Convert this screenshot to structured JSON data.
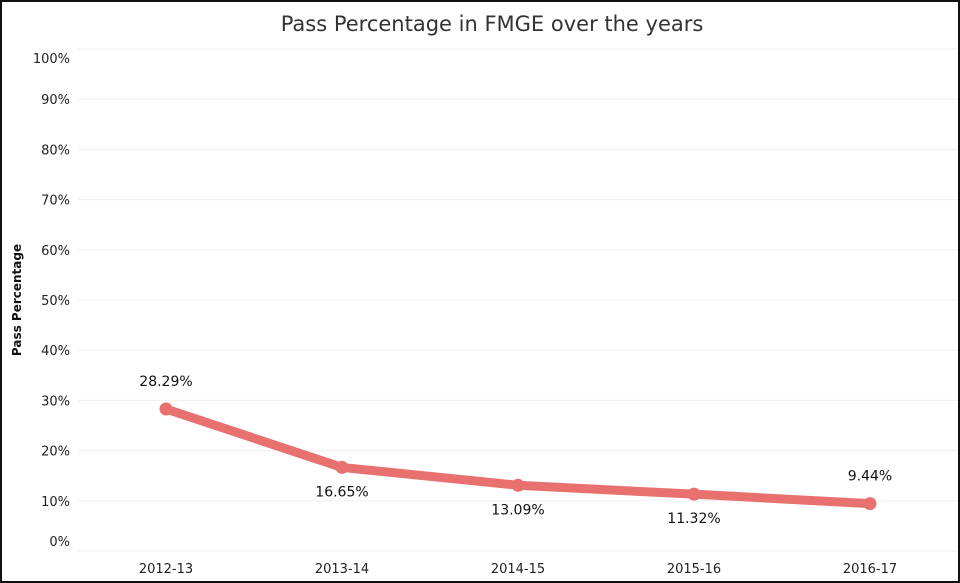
{
  "chart_data": {
    "type": "line",
    "title": "Pass Percentage in FMGE over the years",
    "xlabel": "",
    "ylabel": "Pass Percentage",
    "categories": [
      "2012-13",
      "2013-14",
      "2014-15",
      "2015-16",
      "2016-17"
    ],
    "series": [
      {
        "name": "Pass Percentage",
        "values": [
          28.29,
          16.65,
          13.09,
          11.32,
          9.44
        ],
        "color": "#e8706e"
      }
    ],
    "data_labels": [
      "28.29%",
      "16.65%",
      "13.09%",
      "11.32%",
      "9.44%"
    ],
    "ylim": [
      0,
      100
    ],
    "yticks": [
      "0%",
      "10%",
      "20%",
      "30%",
      "40%",
      "50%",
      "60%",
      "70%",
      "80%",
      "90%",
      "100%"
    ],
    "grid": true,
    "legend": "none"
  }
}
